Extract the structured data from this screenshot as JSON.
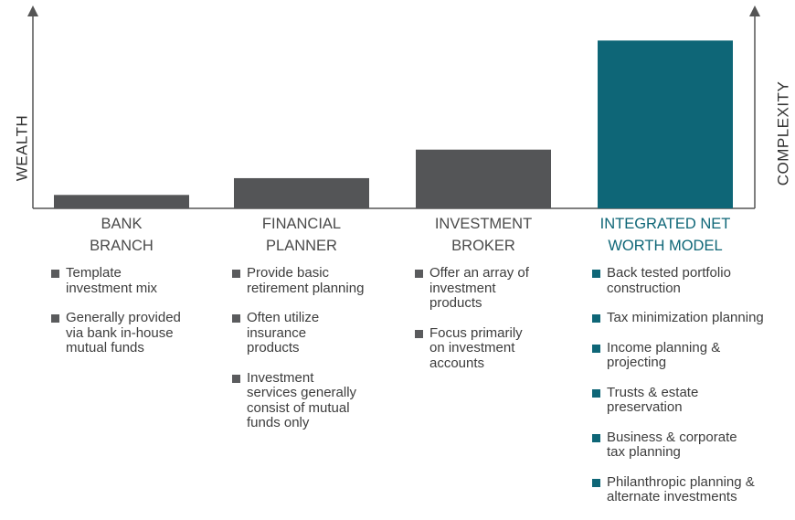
{
  "colors": {
    "bar": "#545557",
    "highlight": "#0e6677",
    "axis": "#555555"
  },
  "axes": {
    "left_label": "WEALTH",
    "right_label": "COMPLEXITY"
  },
  "chart_data": {
    "type": "bar",
    "categories": [
      "BANK BRANCH",
      "FINANCIAL PLANNER",
      "INVESTMENT BROKER",
      "INTEGRATED NET WORTH MODEL"
    ],
    "values": [
      8,
      18,
      35,
      100
    ],
    "highlight_index": 3,
    "ylim": [
      0,
      110
    ],
    "grid": false,
    "xlabel": "",
    "ylabel": "WEALTH",
    "y2label": "COMPLEXITY"
  },
  "columns": [
    {
      "title_lines": [
        "BANK",
        "BRANCH"
      ],
      "bullets": [
        "Template\ninvestment mix",
        "Generally provided\nvia bank in-house\nmutual funds"
      ]
    },
    {
      "title_lines": [
        "FINANCIAL",
        "PLANNER"
      ],
      "bullets": [
        "Provide basic\nretirement planning",
        "Often utilize\ninsurance\nproducts",
        "Investment\nservices generally\nconsist of mutual\nfunds only"
      ]
    },
    {
      "title_lines": [
        "INVESTMENT",
        "BROKER"
      ],
      "bullets": [
        "Offer an array of\ninvestment\nproducts",
        "Focus primarily\non investment\naccounts"
      ]
    },
    {
      "title_lines": [
        "INTEGRATED NET",
        "WORTH MODEL"
      ],
      "bullets": [
        "Back tested portfolio\nconstruction",
        "Tax minimization planning",
        "Income planning &\nprojecting",
        "Trusts & estate\npreservation",
        "Business & corporate\ntax planning",
        "Philanthropic planning &\nalternate investments"
      ]
    }
  ]
}
